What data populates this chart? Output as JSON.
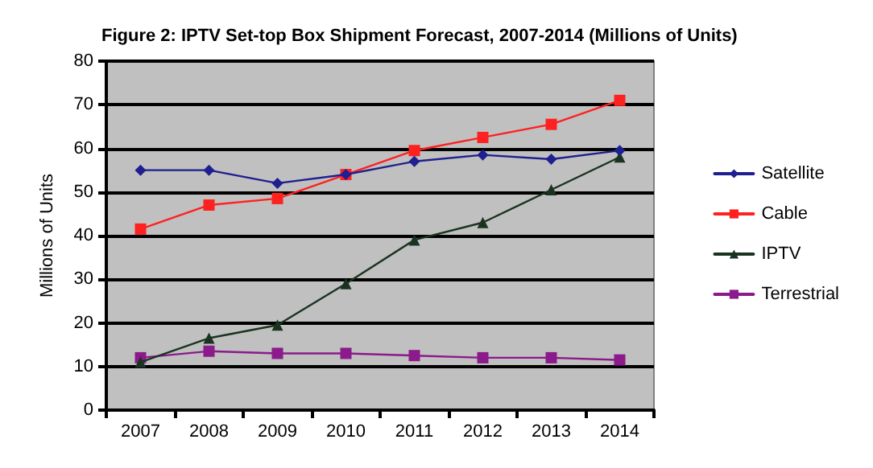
{
  "chart_data": {
    "type": "line",
    "title": "Figure 2: IPTV Set-top Box Shipment Forecast, 2007-2014 (Millions of Units)",
    "ylabel": "Millions of Units",
    "categories": [
      "2007",
      "2008",
      "2009",
      "2010",
      "2011",
      "2012",
      "2013",
      "2014"
    ],
    "series": [
      {
        "name": "Satellite",
        "color": "#1f1f8f",
        "marker": "diamond",
        "values": [
          55,
          55,
          52,
          54,
          57,
          58.5,
          57.5,
          59.5
        ]
      },
      {
        "name": "Cable",
        "color": "#ff2020",
        "marker": "square",
        "values": [
          41.5,
          47,
          48.5,
          54,
          59.5,
          62.5,
          65.5,
          71
        ]
      },
      {
        "name": "IPTV",
        "color": "#1a3320",
        "marker": "triangle",
        "values": [
          11,
          16.5,
          19.5,
          29,
          39,
          43,
          50.5,
          58
        ]
      },
      {
        "name": "Terrestrial",
        "color": "#8b1a8b",
        "marker": "square",
        "values": [
          12,
          13.5,
          13,
          13,
          12.5,
          12,
          12,
          11.5
        ]
      }
    ],
    "ylim": [
      0,
      80
    ],
    "yticks": [
      0,
      10,
      20,
      30,
      40,
      50,
      60,
      70,
      80
    ],
    "grid": "y",
    "legend": "right",
    "line_style": "solid"
  }
}
